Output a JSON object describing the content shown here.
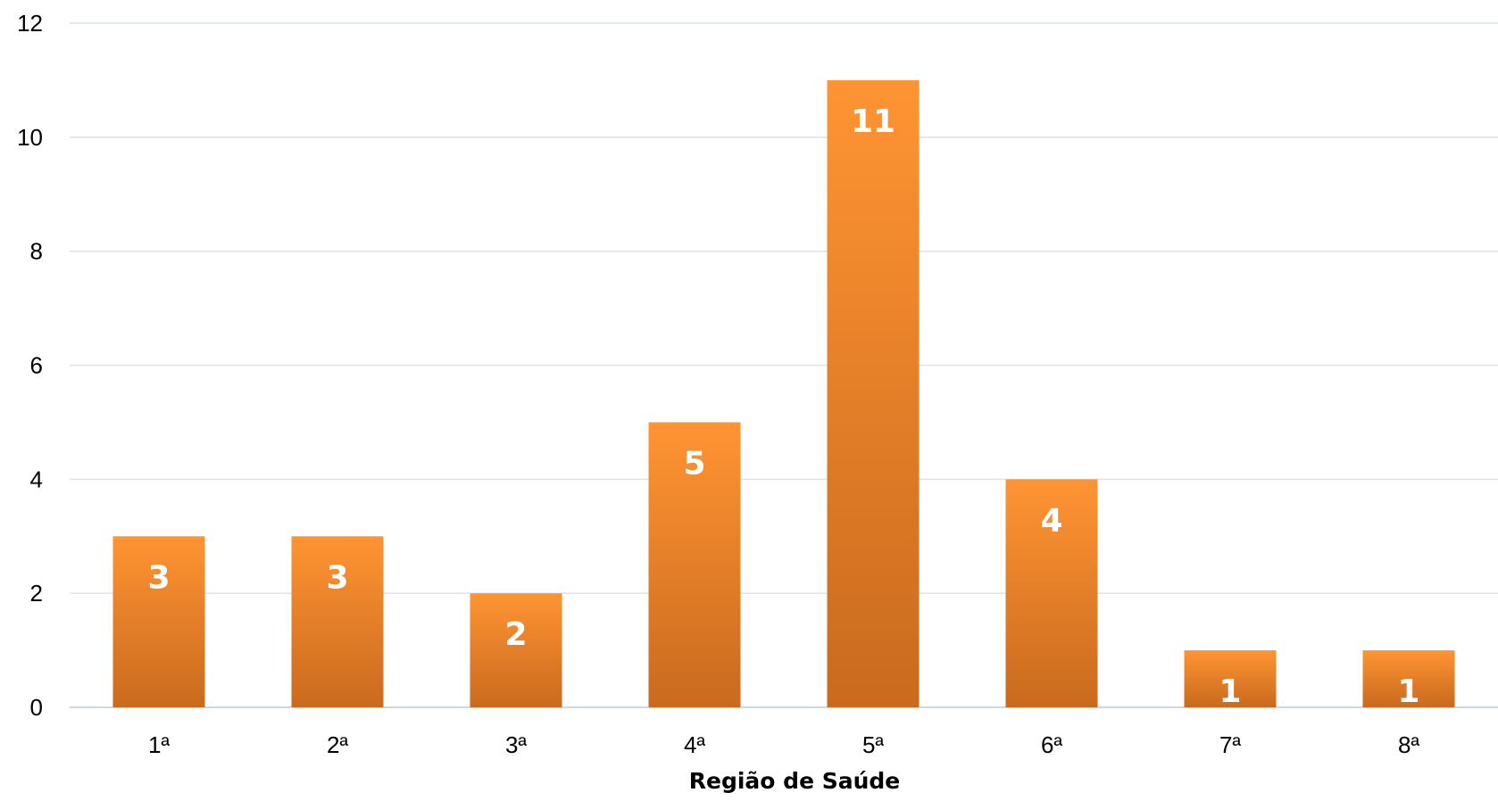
{
  "chart_data": {
    "type": "bar",
    "title": "",
    "xlabel": "Região de Saúde",
    "ylabel": "",
    "categories": [
      "1ª",
      "2ª",
      "3ª",
      "4ª",
      "5ª",
      "6ª",
      "7ª",
      "8ª"
    ],
    "values": [
      3,
      3,
      2,
      5,
      11,
      4,
      1,
      1
    ],
    "ylim": [
      0,
      12
    ],
    "yticks": [
      0,
      2,
      4,
      6,
      8,
      10,
      12
    ],
    "grid": true,
    "legend": "none",
    "data_labels": true,
    "colors": {
      "bar_top": "#FF9433",
      "bar_bottom": "#C96A1E",
      "grid": "#D9E2EE",
      "baseline": "#D0D7E2",
      "data_label": "#FFFFFF"
    }
  }
}
